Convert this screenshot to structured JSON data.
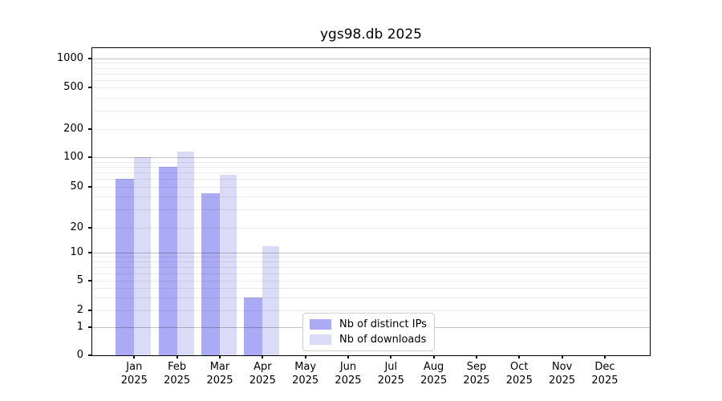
{
  "title": "ygs98.db 2025",
  "chart_data": {
    "type": "bar",
    "title": "ygs98.db 2025",
    "categories": [
      "Jan",
      "Feb",
      "Mar",
      "Apr",
      "May",
      "Jun",
      "Jul",
      "Aug",
      "Sep",
      "Oct",
      "Nov",
      "Dec"
    ],
    "year_label": "2025",
    "series": [
      {
        "name": "Nb of distinct IPs",
        "color": "#aaaaf5",
        "values": [
          60,
          80,
          43,
          3,
          null,
          null,
          null,
          null,
          null,
          null,
          null,
          null
        ]
      },
      {
        "name": "Nb of downloads",
        "color": "#dbdbf8",
        "values": [
          100,
          115,
          66,
          12,
          null,
          null,
          null,
          null,
          null,
          null,
          null,
          null
        ]
      }
    ],
    "xlabel": "",
    "ylabel": "",
    "yscale": "log (linear below 1, 0 shown at baseline)",
    "yticks": [
      0,
      1,
      2,
      5,
      10,
      20,
      50,
      100,
      200,
      500,
      1000
    ],
    "ylim": [
      0,
      1300
    ],
    "grid": "horizontal major (decades) and minor gridlines",
    "legend_position": "inside bottom-center"
  }
}
